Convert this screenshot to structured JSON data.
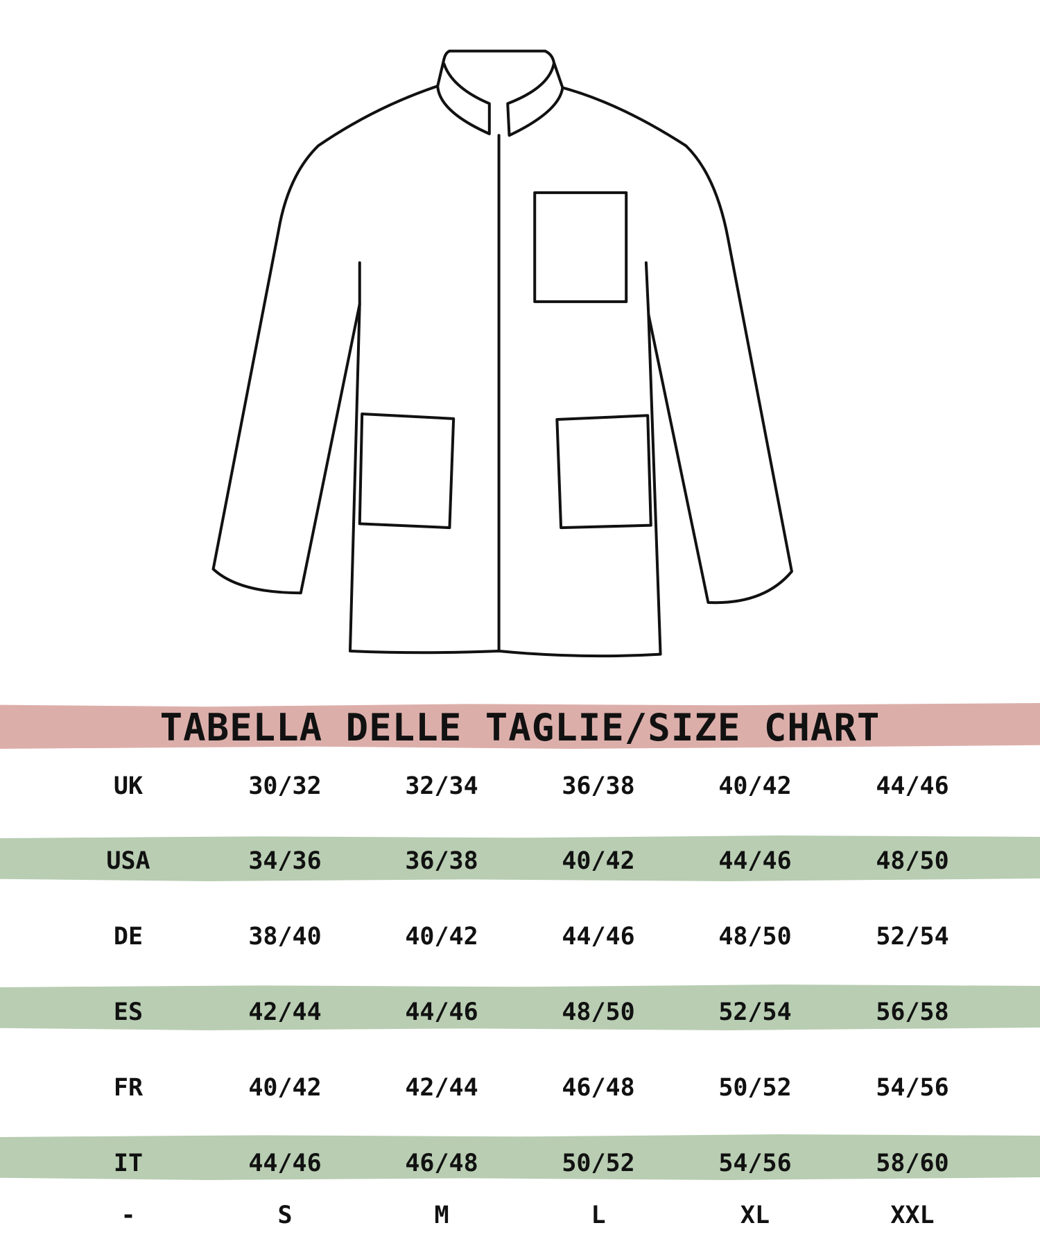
{
  "title": "TABELLA DELLE TAGLIE/SIZE CHART",
  "colors": {
    "title_band": "#dcaeaa",
    "row_band": "#b8cdb2",
    "text": "#111111"
  },
  "illustration": "jacket-outline",
  "rows": [
    {
      "label": "UK",
      "values": [
        "30/32",
        "32/34",
        "36/38",
        "40/42",
        "44/46"
      ]
    },
    {
      "label": "USA",
      "values": [
        "34/36",
        "36/38",
        "40/42",
        "44/46",
        "48/50"
      ]
    },
    {
      "label": "DE",
      "values": [
        "38/40",
        "40/42",
        "44/46",
        "48/50",
        "52/54"
      ]
    },
    {
      "label": "ES",
      "values": [
        "42/44",
        "44/46",
        "48/50",
        "52/54",
        "56/58"
      ]
    },
    {
      "label": "FR",
      "values": [
        "40/42",
        "42/44",
        "46/48",
        "50/52",
        "54/56"
      ]
    },
    {
      "label": "IT",
      "values": [
        "44/46",
        "46/48",
        "50/52",
        "54/56",
        "58/60"
      ]
    },
    {
      "label": "-",
      "values": [
        "S",
        "M",
        "L",
        "XL",
        "XXL"
      ]
    }
  ]
}
